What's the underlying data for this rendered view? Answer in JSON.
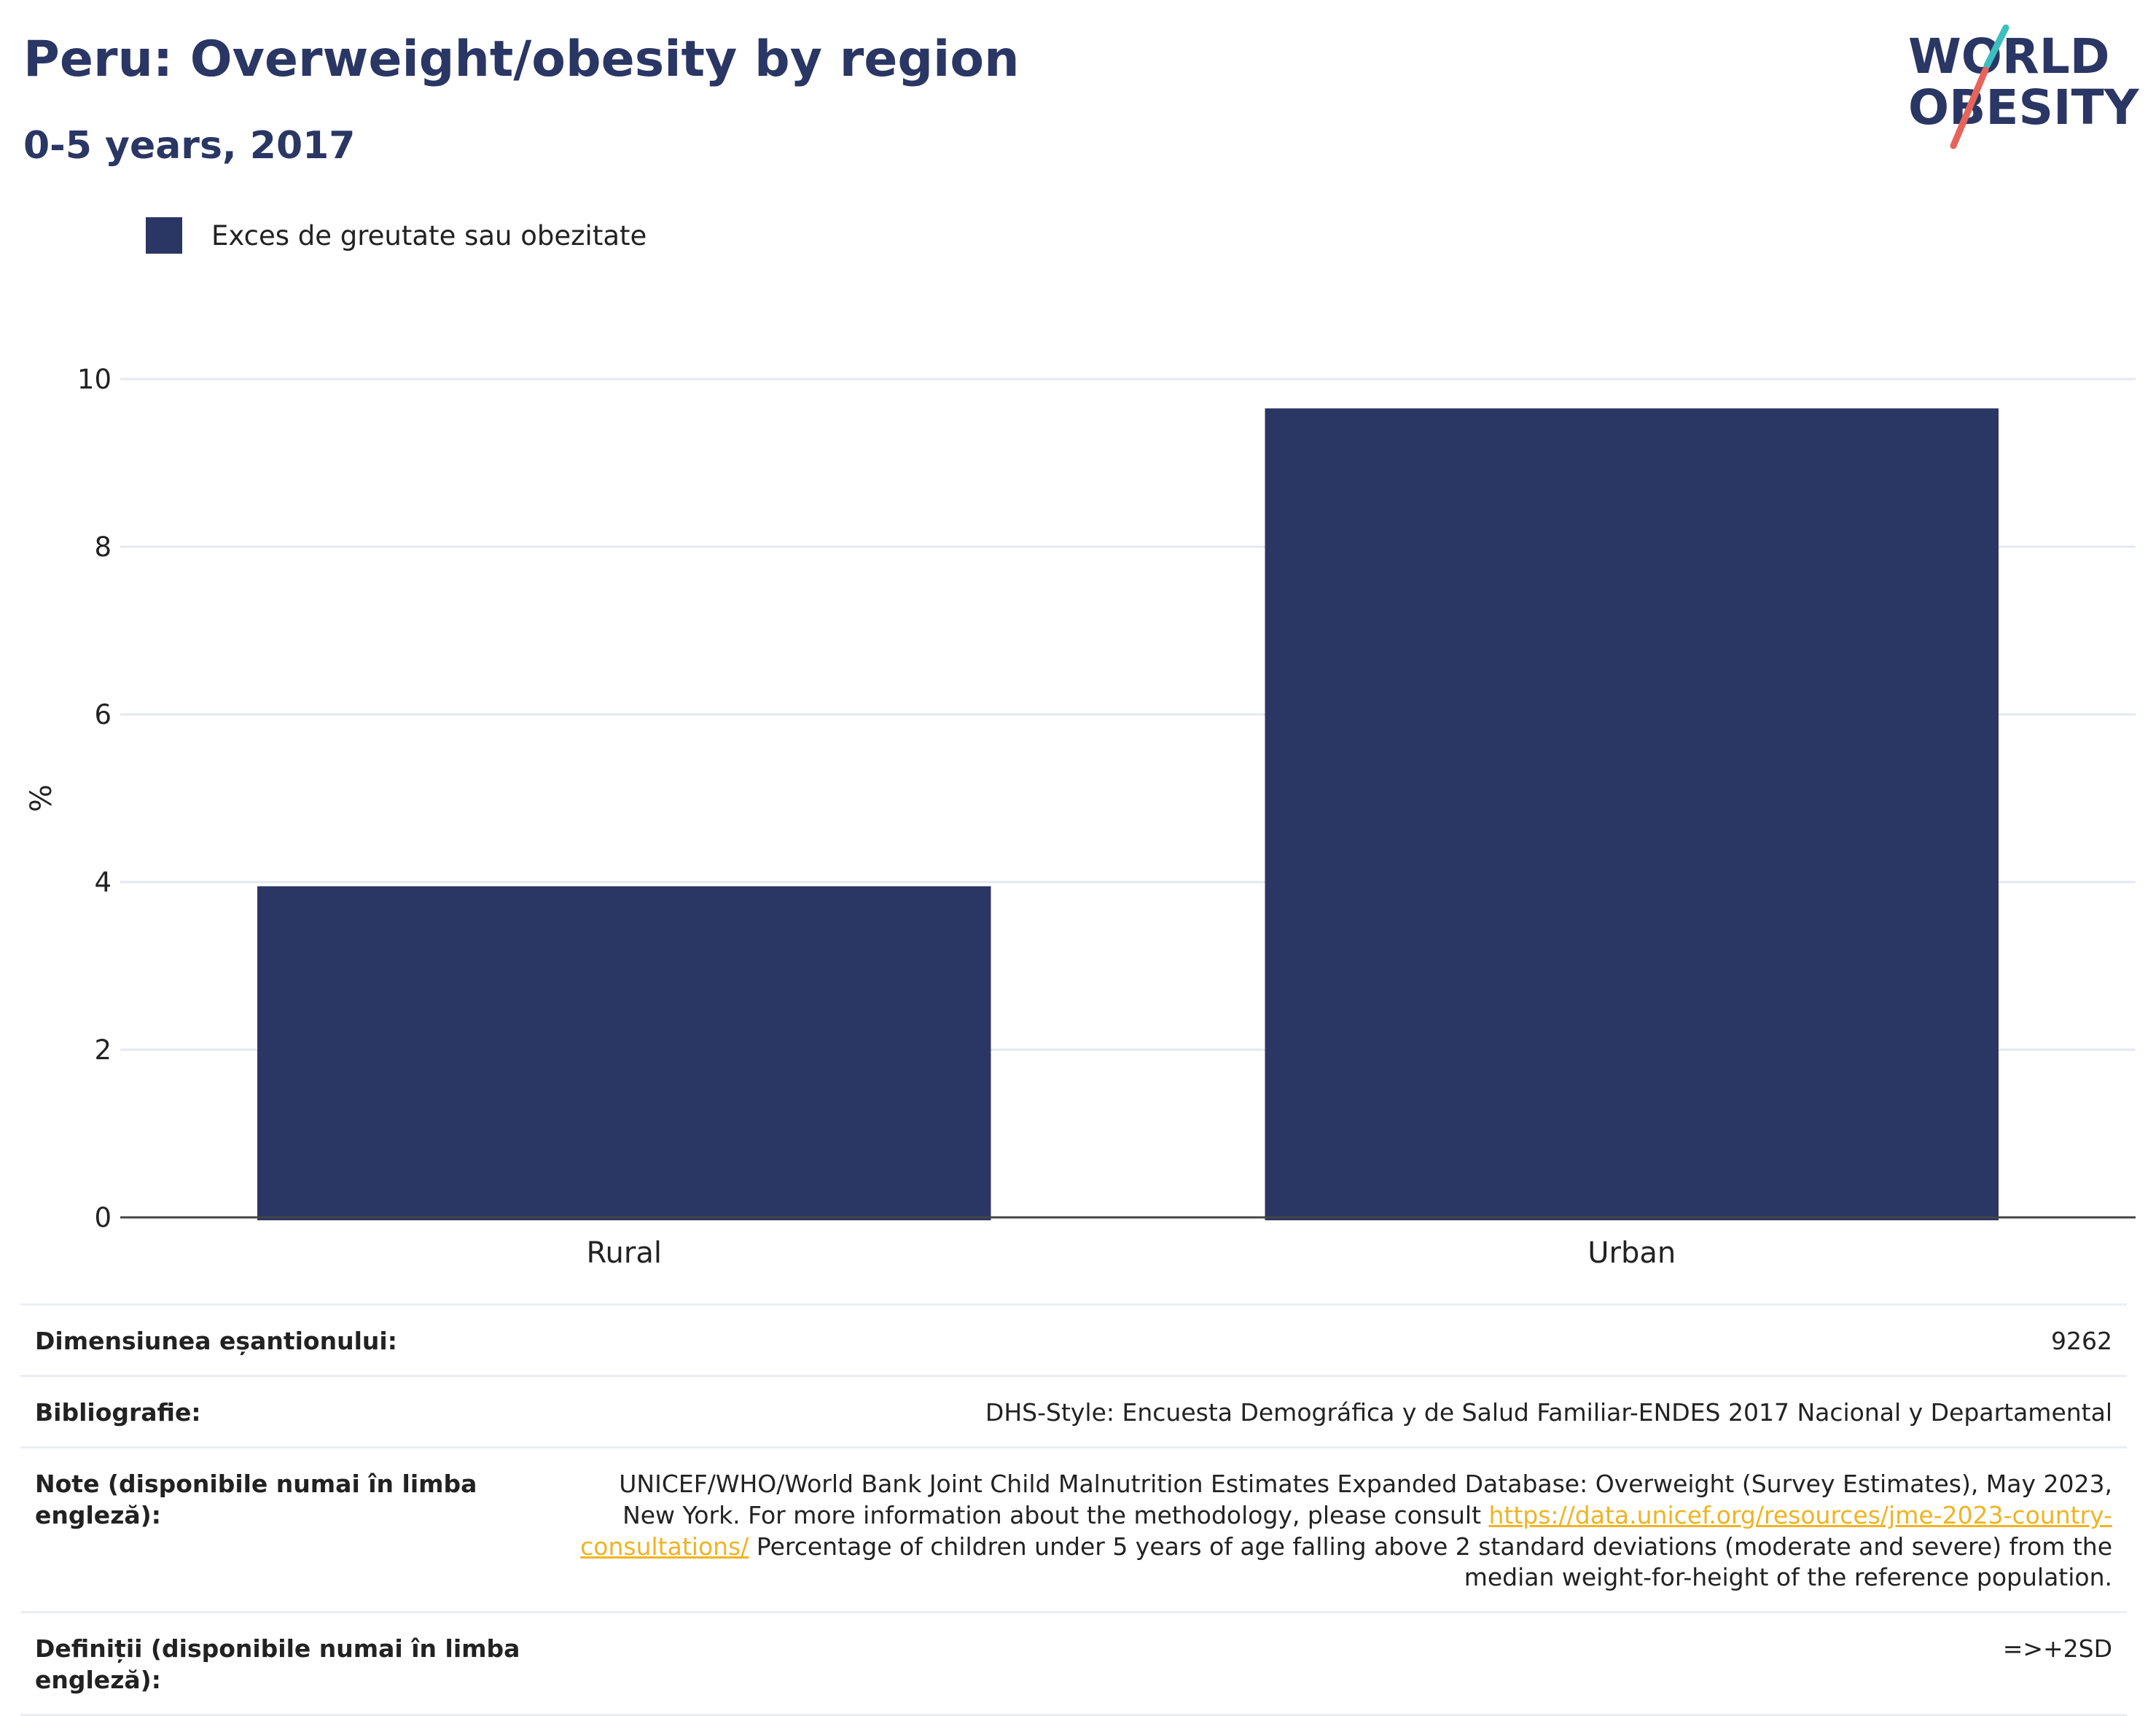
{
  "title": "Peru: Overweight/obesity by region",
  "subtitle": "0-5 years, 2017",
  "logo": {
    "line1": "WORLD",
    "line2": "OBESITY",
    "colors": {
      "text": "#2a3663",
      "slash_top": "#3cbfbe",
      "slash_bottom": "#e8645a"
    }
  },
  "colors": {
    "bar": "#2a3663",
    "grid": "#e6e8ef",
    "axis": "#444444",
    "text": "#222222",
    "link": "#f0b323"
  },
  "legend": {
    "label": "Exces de greutate sau obezitate"
  },
  "chart_data": {
    "type": "bar",
    "categories": [
      "Rural",
      "Urban"
    ],
    "series": [
      {
        "name": "Exces de greutate sau obezitate",
        "values": [
          3.95,
          9.65
        ]
      }
    ],
    "ylabel": "%",
    "xlabel": "",
    "ylim": [
      0,
      10
    ],
    "yticks": [
      0,
      2,
      4,
      6,
      8,
      10
    ],
    "grid": true,
    "legend_position": "top-left"
  },
  "meta": {
    "sample_size_label": "Dimensiunea eșantionului:",
    "sample_size_value": "9262",
    "bibliography_label": "Bibliografie:",
    "bibliography_value": "DHS-Style: Encuesta Demográfica y de Salud Familiar-ENDES 2017 Nacional y Departamental",
    "notes_label": "Note (disponibile numai în limba engleză):",
    "notes_text1": "UNICEF/WHO/World Bank Joint Child Malnutrition Estimates Expanded Database: Overweight (Survey Estimates), May 2023, New York. For more information about the methodology, please consult ",
    "notes_link": "https://data.unicef.org/resources/jme-2023-country-consultations/",
    "notes_text2": " Percentage of children under 5 years of age falling above 2 standard deviations (moderate and severe) from the median weight-for-height of the reference population.",
    "definitions_label": "Definiții (disponibile numai în limba engleză):",
    "definitions_value": "=>+2SD"
  }
}
